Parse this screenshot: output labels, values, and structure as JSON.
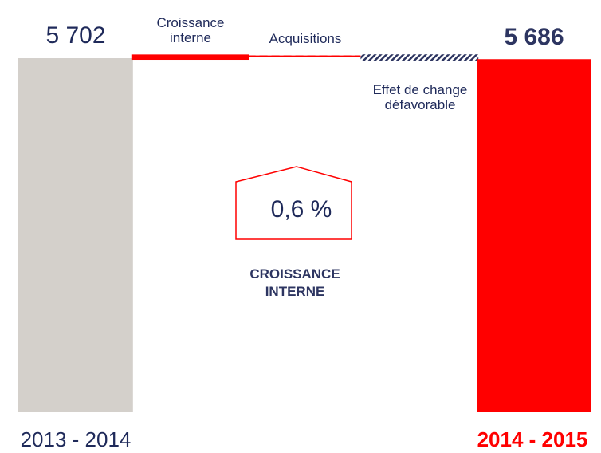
{
  "chart_data": {
    "type": "waterfall",
    "categories": [
      "2013 - 2014",
      "Croissance interne",
      "Acquisitions",
      "Effet de change défavorable",
      "2014 - 2015"
    ],
    "measure": [
      "absolute",
      "relative",
      "relative",
      "relative",
      "absolute"
    ],
    "values": [
      5702,
      34,
      2,
      -52,
      5686
    ],
    "value_labels": [
      "5 702",
      null,
      null,
      null,
      "5 686"
    ],
    "colors": [
      "#d4d0cb",
      "#ff0000",
      "#ff0000",
      "#2d3561",
      "#ff0000"
    ],
    "fills": [
      "solid",
      "solid",
      "dashed",
      "hatched",
      "solid"
    ],
    "ylim": [
      0,
      5760
    ],
    "annotation": {
      "value": "0,6 %",
      "text": "CROISSANCE INTERNE"
    }
  }
}
